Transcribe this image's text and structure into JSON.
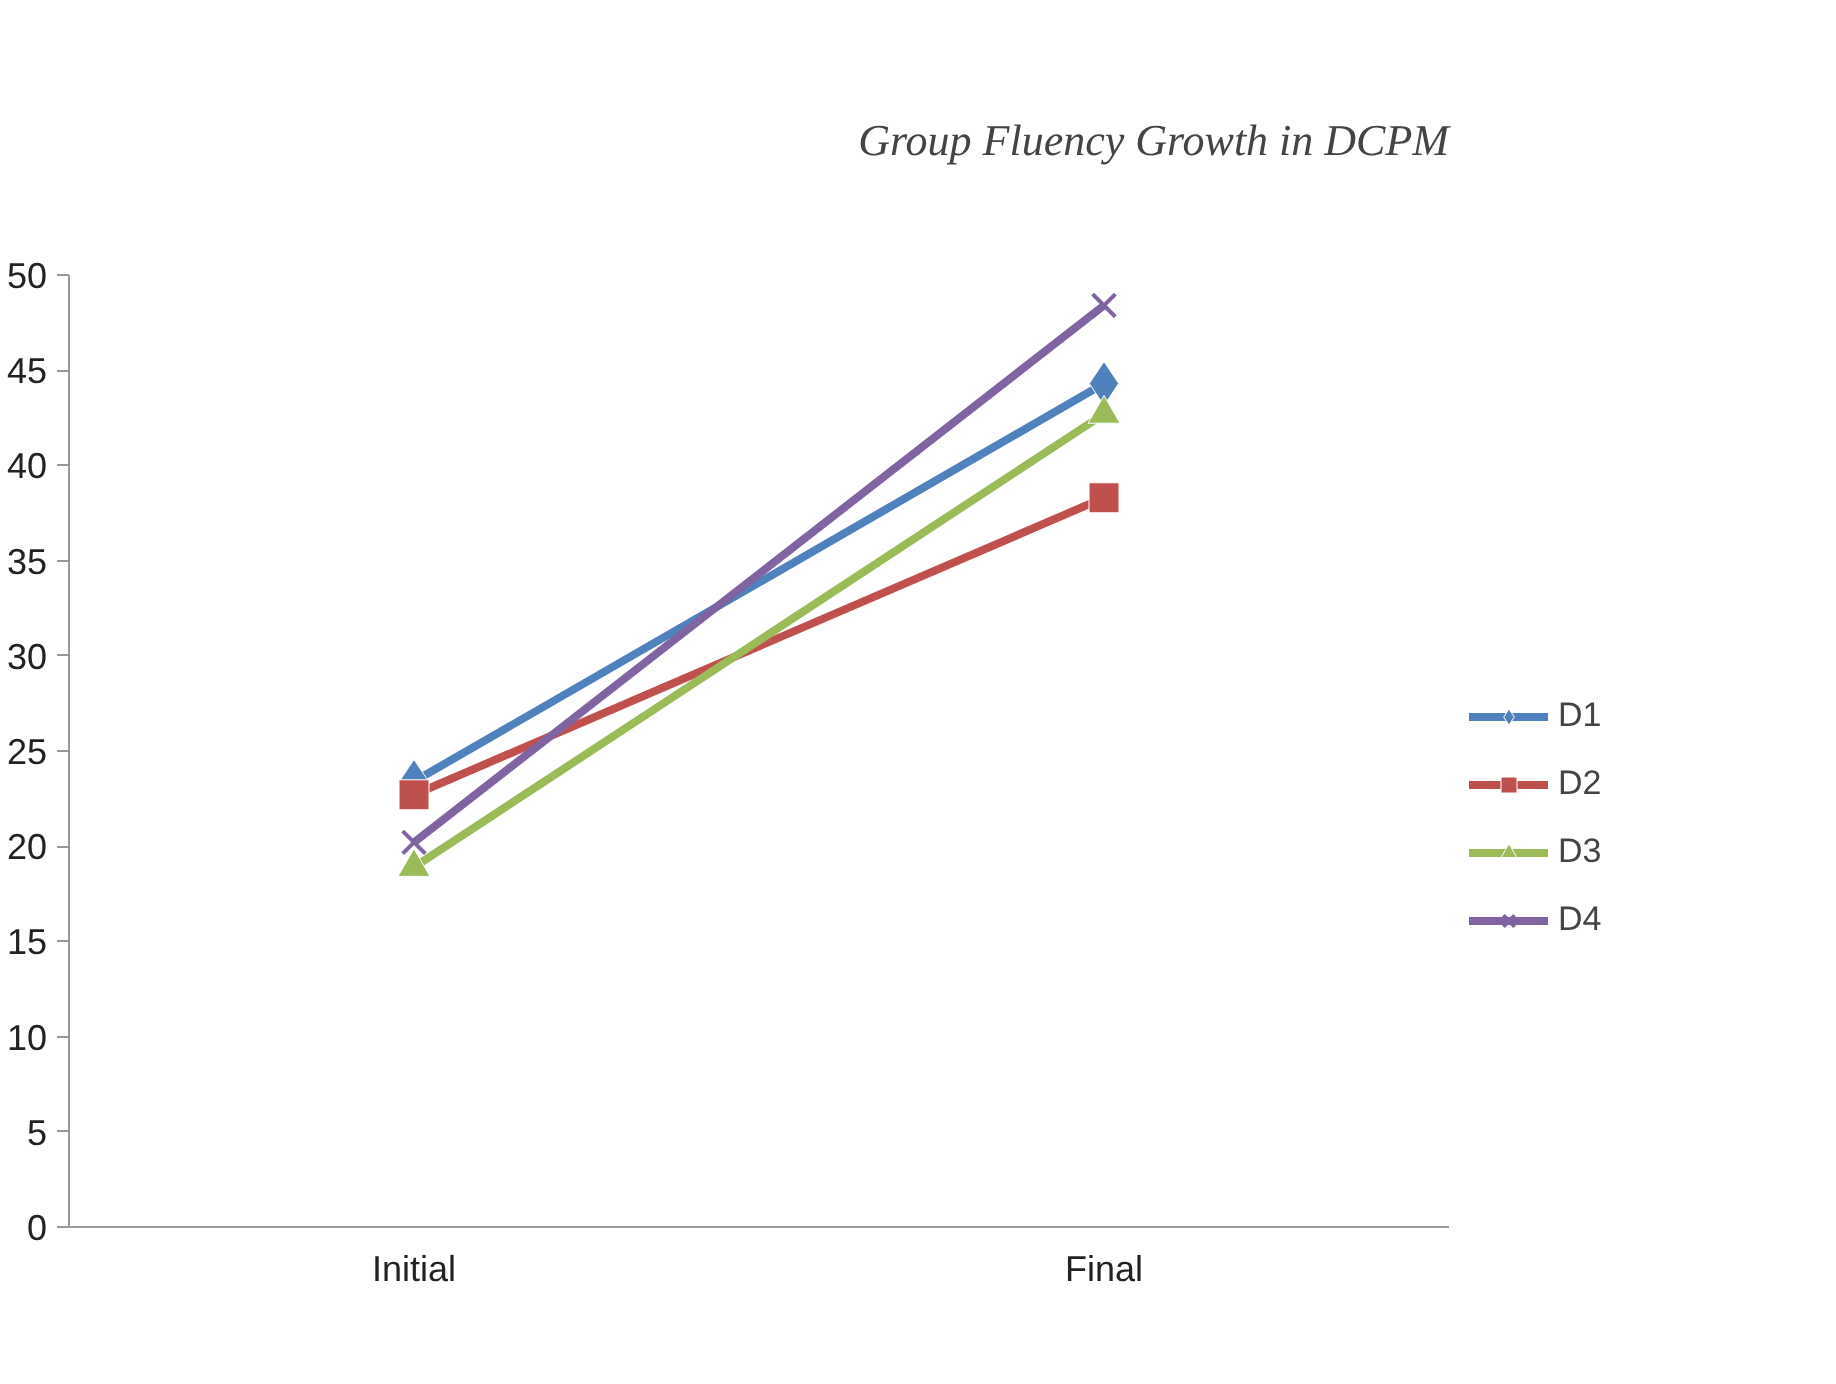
{
  "chart_data": {
    "type": "line",
    "title": "Group Fluency Growth in DCPM",
    "categories": [
      "Initial",
      "Final"
    ],
    "series": [
      {
        "name": "D1",
        "color": "#4f81bd",
        "values": [
          23.4,
          44.3
        ],
        "marker": "diamond"
      },
      {
        "name": "D2",
        "color": "#c0504d",
        "values": [
          22.7,
          38.3
        ],
        "marker": "square"
      },
      {
        "name": "D3",
        "color": "#9bbb59",
        "values": [
          18.9,
          42.7
        ],
        "marker": "triangle"
      },
      {
        "name": "D4",
        "color": "#8064a2",
        "values": [
          20.2,
          48.4
        ],
        "marker": "cross"
      }
    ],
    "ylim": [
      0,
      50
    ],
    "yticks": [
      0,
      5,
      10,
      15,
      20,
      25,
      30,
      35,
      40,
      45,
      50
    ],
    "grid": false,
    "legend": "right",
    "line_style": "solid"
  }
}
